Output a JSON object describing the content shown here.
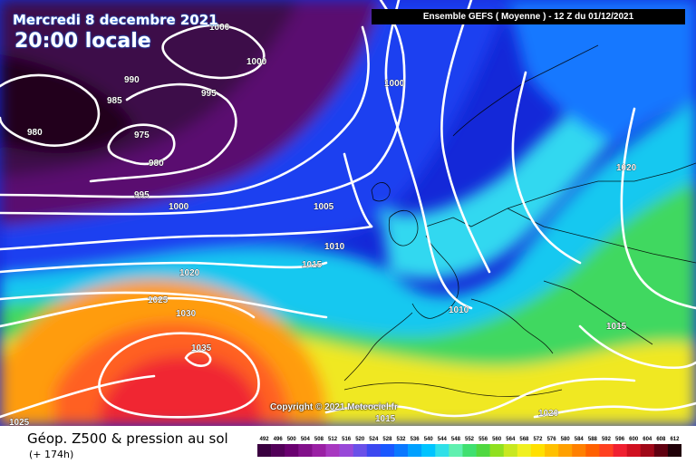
{
  "header": {
    "date": "Mercredi 8 decembre 2021",
    "local_time": "20:00 locale",
    "model": "Ensemble GEFS  ( Moyenne )  -  12 Z du 01/12/2021"
  },
  "copyright": "Copyright © 2021 Meteociel.fr",
  "footer": {
    "title": "Géop. Z500 & pression au sol",
    "subtitle": "(+ 174h)"
  },
  "isobar_labels": [
    "1000",
    "1000",
    "990",
    "985",
    "995",
    "980",
    "975",
    "980",
    "995",
    "1000",
    "1000",
    "1005",
    "1010",
    "1015",
    "1020",
    "1025",
    "1030",
    "1035",
    "1010",
    "1020",
    "1015",
    "1020",
    "1015",
    "1025"
  ],
  "colorbar": {
    "labels": [
      "492",
      "496",
      "500",
      "504",
      "508",
      "512",
      "516",
      "520",
      "524",
      "528",
      "532",
      "536",
      "540",
      "544",
      "548",
      "552",
      "556",
      "560",
      "564",
      "568",
      "572",
      "576",
      "580",
      "584",
      "588",
      "592",
      "596",
      "600",
      "604",
      "608",
      "612"
    ],
    "colors": [
      "#3a0040",
      "#520058",
      "#6a0070",
      "#82108a",
      "#9a20a4",
      "#a838c0",
      "#9848d8",
      "#6a50e8",
      "#3c48f0",
      "#1a58ff",
      "#0a78ff",
      "#00a0ff",
      "#00c4ff",
      "#30e0e8",
      "#60f0b0",
      "#40e070",
      "#50d840",
      "#90e020",
      "#c8e820",
      "#f0f020",
      "#ffe000",
      "#ffc000",
      "#ffa000",
      "#ff8000",
      "#ff6000",
      "#ff4020",
      "#f02030",
      "#d01020",
      "#a00818",
      "#600010",
      "#200008"
    ]
  }
}
